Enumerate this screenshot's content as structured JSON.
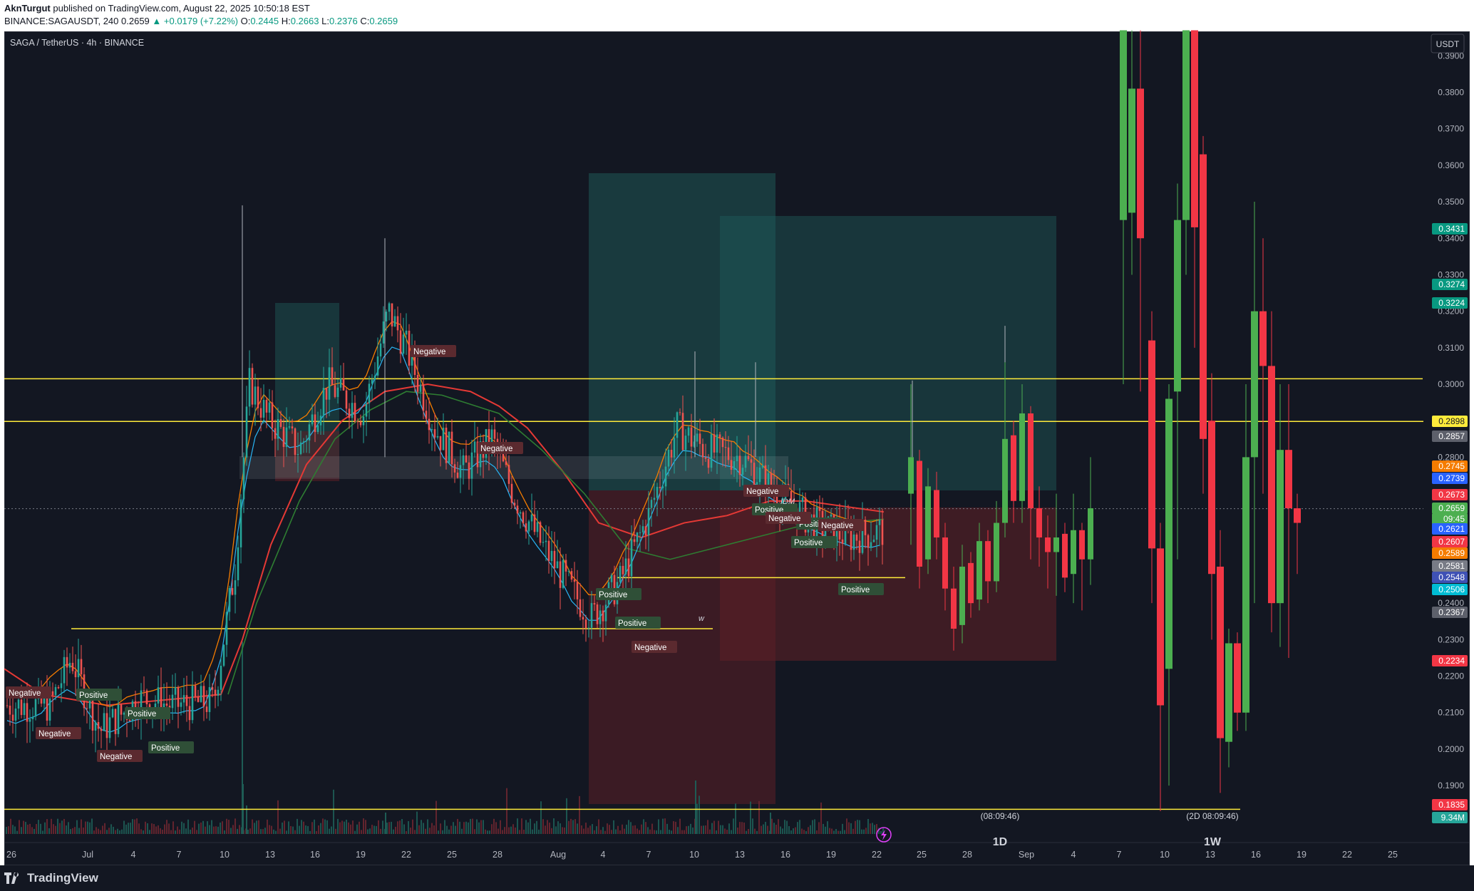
{
  "header": {
    "author": "AknTurgut",
    "published_text": "published on TradingView.com, August 22, 2025 10:50:18 EST",
    "symbol_line_prefix": "BINANCE:SAGAUSDT, 240",
    "last_price": "0.2659",
    "change": "▲ +0.0179 (+7.22%)",
    "open_label": "O:",
    "open": "0.2445",
    "high_label": "H:",
    "high": "0.2663",
    "low_label": "L:",
    "low": "0.2376",
    "close_label": "C:",
    "close": "0.2659"
  },
  "chart_title": "SAGA / TetherUS · 4h · BINANCE",
  "currency_button": "USDT",
  "brand": "TradingView",
  "colors": {
    "bg": "#131722",
    "up": "#26a69a",
    "down": "#ef5350",
    "grid_text": "#b2b5be",
    "hline": "#ffeb3b",
    "bull_candle": "#4caf50",
    "bear_candle": "#f23645"
  },
  "chart_data": {
    "type": "candlestick",
    "symbol": "SAGA / TetherUS",
    "interval": "4h",
    "exchange": "BINANCE",
    "ylim": [
      0.183,
      0.398
    ],
    "y_ticks": [
      "0.3900",
      "0.3800",
      "0.3700",
      "0.3600",
      "0.3500",
      "0.3400",
      "0.3300",
      "0.3200",
      "0.3100",
      "0.3000",
      "0.2800",
      "0.2400",
      "0.2300",
      "0.2200",
      "0.2100",
      "0.2000",
      "0.1900"
    ],
    "x_ticks": [
      "26",
      "Jul",
      "4",
      "7",
      "10",
      "13",
      "16",
      "19",
      "22",
      "25",
      "28",
      "Aug",
      "4",
      "7",
      "10",
      "13",
      "16",
      "19",
      "22",
      "25",
      "28",
      "Sep",
      "4",
      "7",
      "10",
      "13",
      "16",
      "19",
      "22",
      "25"
    ],
    "horizontal_levels": [
      0.3015,
      0.2898,
      0.233,
      0.1835,
      0.247
    ],
    "price_labels": [
      {
        "value": "0.3431",
        "color": "#089981"
      },
      {
        "value": "0.3274",
        "color": "#089981"
      },
      {
        "value": "0.3224",
        "color": "#089981"
      },
      {
        "value": "0.2898",
        "color": "#ffeb3b"
      },
      {
        "value": "0.2857",
        "color": "#5d606b"
      },
      {
        "value": "0.2745",
        "color": "#f57c00"
      },
      {
        "value": "0.2739",
        "color": "#2962ff"
      },
      {
        "value": "0.2673",
        "color": "#f23645"
      },
      {
        "value": "0.2659",
        "color": "#4caf50"
      },
      {
        "value": "09:45",
        "color": "#4caf50"
      },
      {
        "value": "0.2621",
        "color": "#2962ff"
      },
      {
        "value": "0.2607",
        "color": "#f23645"
      },
      {
        "value": "0.2589",
        "color": "#f57c00"
      },
      {
        "value": "0.2581",
        "color": "#787b86"
      },
      {
        "value": "0.2548",
        "color": "#3f51b5"
      },
      {
        "value": "0.2506",
        "color": "#00bcd4"
      },
      {
        "value": "0.2367",
        "color": "#5d606b"
      },
      {
        "value": "0.2234",
        "color": "#f23645"
      },
      {
        "value": "0.1835",
        "color": "#f23645"
      },
      {
        "value": "9.34M",
        "color": "#26a69a"
      }
    ],
    "annotations": [
      "Negative",
      "Positive",
      "Negative",
      "Positive",
      "Negative",
      "Positive",
      "Negative",
      "Negative",
      "Positive",
      "Negative",
      "Positive",
      "Positive",
      "Negative",
      "Positive",
      "Negative",
      "Negative",
      "Positive",
      "Positive"
    ],
    "timeframe_overlays": [
      {
        "label": "1D",
        "timer": "(08:09:46)"
      },
      {
        "label": "1W",
        "timer": "(2D 08:09:46)"
      }
    ],
    "misc_labels": [
      "w",
      "IDM"
    ]
  }
}
